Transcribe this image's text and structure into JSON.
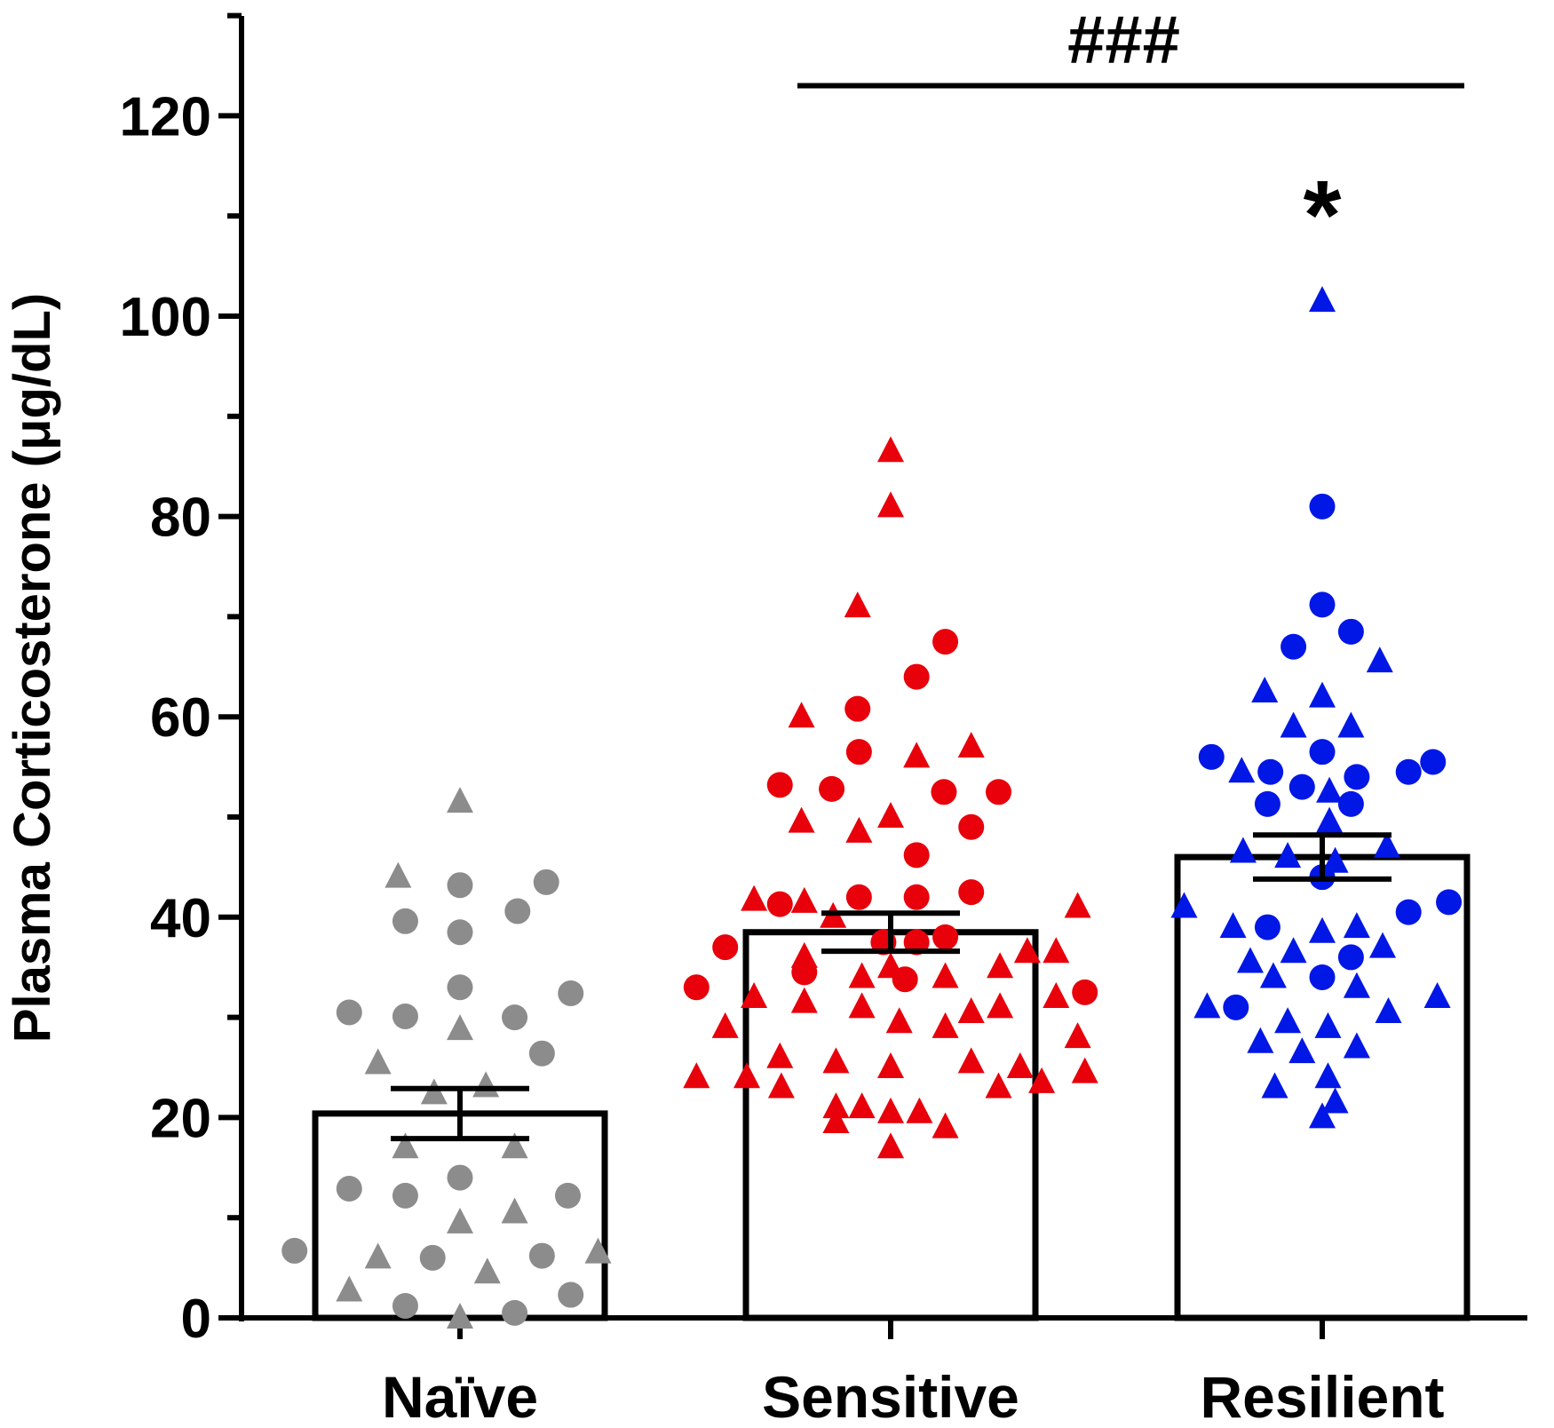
{
  "chart_data": {
    "type": "bar",
    "title": "",
    "xlabel": "",
    "ylabel": "Plasma Corticosterone (μg/dL)",
    "ylim": [
      0,
      130
    ],
    "ytick_step": 10,
    "ytick_labels": [
      "0",
      "20",
      "40",
      "60",
      "80",
      "100",
      "120"
    ],
    "categories": [
      "Naïve",
      "Sensitive",
      "Resilient"
    ],
    "means": [
      20.4,
      38.5,
      46.0
    ],
    "sem": [
      2.5,
      1.9,
      2.2
    ],
    "colors": [
      "#8c8c8c",
      "#e8000b",
      "#0017e6"
    ],
    "significance": {
      "bracket_label": "###",
      "bracket_from": "Sensitive",
      "bracket_to": "Resilient",
      "bracket_y": 123,
      "star_label": "*",
      "star_category": "Resilient",
      "star_y": 111
    },
    "points": [
      [
        {
          "v": 51.5,
          "s": "triangle",
          "o": 0.0
        },
        {
          "v": 44.0,
          "s": "triangle",
          "o": -0.43
        },
        {
          "v": 43.2,
          "s": "circle",
          "o": 0.0
        },
        {
          "v": 43.5,
          "s": "circle",
          "o": 0.6
        },
        {
          "v": 40.6,
          "s": "circle",
          "o": 0.4
        },
        {
          "v": 39.6,
          "s": "circle",
          "o": -0.38
        },
        {
          "v": 38.5,
          "s": "circle",
          "o": 0.0
        },
        {
          "v": 33.0,
          "s": "circle",
          "o": 0.0
        },
        {
          "v": 32.4,
          "s": "circle",
          "o": 0.77
        },
        {
          "v": 30.5,
          "s": "circle",
          "o": -0.77
        },
        {
          "v": 30.1,
          "s": "circle",
          "o": -0.38
        },
        {
          "v": 30.0,
          "s": "circle",
          "o": 0.38
        },
        {
          "v": 28.8,
          "s": "triangle",
          "o": 0.0
        },
        {
          "v": 26.4,
          "s": "circle",
          "o": 0.57
        },
        {
          "v": 25.4,
          "s": "triangle",
          "o": -0.57
        },
        {
          "v": 23.1,
          "s": "triangle",
          "o": 0.18
        },
        {
          "v": 22.4,
          "s": "triangle",
          "o": -0.18
        },
        {
          "v": 17.0,
          "s": "triangle",
          "o": -0.38
        },
        {
          "v": 17.0,
          "s": "triangle",
          "o": 0.38
        },
        {
          "v": 14.0,
          "s": "circle",
          "o": 0.0
        },
        {
          "v": 12.9,
          "s": "circle",
          "o": -0.77
        },
        {
          "v": 12.2,
          "s": "circle",
          "o": 0.75
        },
        {
          "v": 12.2,
          "s": "circle",
          "o": -0.38
        },
        {
          "v": 10.5,
          "s": "triangle",
          "o": 0.38
        },
        {
          "v": 9.5,
          "s": "triangle",
          "o": 0.0
        },
        {
          "v": 6.7,
          "s": "circle",
          "o": -1.15
        },
        {
          "v": 6.5,
          "s": "triangle",
          "o": 0.96
        },
        {
          "v": 6.2,
          "s": "circle",
          "o": 0.57
        },
        {
          "v": 6.0,
          "s": "circle",
          "o": -0.19
        },
        {
          "v": 6.0,
          "s": "triangle",
          "o": -0.57
        },
        {
          "v": 4.5,
          "s": "triangle",
          "o": 0.19
        },
        {
          "v": 2.7,
          "s": "triangle",
          "o": -0.77
        },
        {
          "v": 2.3,
          "s": "circle",
          "o": 0.77
        },
        {
          "v": 1.2,
          "s": "circle",
          "o": -0.38
        },
        {
          "v": 0.5,
          "s": "circle",
          "o": 0.38
        },
        {
          "v": 0.0,
          "s": "triangle",
          "o": 0.0
        }
      ],
      [
        {
          "v": 86.5,
          "s": "triangle",
          "o": 0.0
        },
        {
          "v": 81.0,
          "s": "triangle",
          "o": 0.0
        },
        {
          "v": 71.0,
          "s": "triangle",
          "o": -0.23
        },
        {
          "v": 67.5,
          "s": "circle",
          "o": 0.38
        },
        {
          "v": 64.0,
          "s": "circle",
          "o": 0.18
        },
        {
          "v": 60.8,
          "s": "circle",
          "o": -0.23
        },
        {
          "v": 60.0,
          "s": "triangle",
          "o": -0.62
        },
        {
          "v": 57.0,
          "s": "triangle",
          "o": 0.56
        },
        {
          "v": 56.5,
          "s": "circle",
          "o": -0.22
        },
        {
          "v": 56.0,
          "s": "triangle",
          "o": 0.18
        },
        {
          "v": 53.2,
          "s": "circle",
          "o": -0.77
        },
        {
          "v": 52.8,
          "s": "circle",
          "o": -0.41
        },
        {
          "v": 52.5,
          "s": "circle",
          "o": 0.75
        },
        {
          "v": 52.5,
          "s": "circle",
          "o": 0.37
        },
        {
          "v": 50.0,
          "s": "triangle",
          "o": 0.0
        },
        {
          "v": 49.5,
          "s": "triangle",
          "o": -0.62
        },
        {
          "v": 49.0,
          "s": "circle",
          "o": 0.56
        },
        {
          "v": 48.5,
          "s": "triangle",
          "o": -0.22
        },
        {
          "v": 46.2,
          "s": "circle",
          "o": 0.18
        },
        {
          "v": 42.5,
          "s": "circle",
          "o": 0.56
        },
        {
          "v": 42.0,
          "s": "circle",
          "o": -0.22
        },
        {
          "v": 42.0,
          "s": "circle",
          "o": 0.18
        },
        {
          "v": 41.7,
          "s": "triangle",
          "o": -0.95
        },
        {
          "v": 41.5,
          "s": "triangle",
          "o": -0.6
        },
        {
          "v": 41.3,
          "s": "circle",
          "o": -0.77
        },
        {
          "v": 41.0,
          "s": "triangle",
          "o": 1.3
        },
        {
          "v": 40.0,
          "s": "triangle",
          "o": -0.4
        },
        {
          "v": 38.0,
          "s": "circle",
          "o": 0.38
        },
        {
          "v": 37.5,
          "s": "circle",
          "o": 0.18
        },
        {
          "v": 37.5,
          "s": "circle",
          "o": -0.05
        },
        {
          "v": 37.0,
          "s": "circle",
          "o": -1.15
        },
        {
          "v": 36.5,
          "s": "triangle",
          "o": 0.95
        },
        {
          "v": 36.5,
          "s": "triangle",
          "o": 1.15
        },
        {
          "v": 36.0,
          "s": "triangle",
          "o": -0.6
        },
        {
          "v": 35.0,
          "s": "triangle",
          "o": 0.76
        },
        {
          "v": 35.0,
          "s": "triangle",
          "o": 0.0
        },
        {
          "v": 34.5,
          "s": "circle",
          "o": -0.6
        },
        {
          "v": 34.0,
          "s": "triangle",
          "o": 0.38
        },
        {
          "v": 34.0,
          "s": "triangle",
          "o": -0.2
        },
        {
          "v": 33.8,
          "s": "circle",
          "o": 0.1
        },
        {
          "v": 33.0,
          "s": "circle",
          "o": -1.35
        },
        {
          "v": 32.5,
          "s": "circle",
          "o": 1.35
        },
        {
          "v": 32.0,
          "s": "triangle",
          "o": -0.95
        },
        {
          "v": 32.0,
          "s": "triangle",
          "o": 1.15
        },
        {
          "v": 31.5,
          "s": "triangle",
          "o": -0.6
        },
        {
          "v": 31.0,
          "s": "triangle",
          "o": 0.76
        },
        {
          "v": 31.0,
          "s": "triangle",
          "o": -0.2
        },
        {
          "v": 30.5,
          "s": "triangle",
          "o": 0.56
        },
        {
          "v": 29.5,
          "s": "triangle",
          "o": 0.06
        },
        {
          "v": 29.0,
          "s": "triangle",
          "o": 0.38
        },
        {
          "v": 29.0,
          "s": "triangle",
          "o": -1.15
        },
        {
          "v": 28.0,
          "s": "triangle",
          "o": 1.3
        },
        {
          "v": 26.0,
          "s": "triangle",
          "o": -0.77
        },
        {
          "v": 25.5,
          "s": "triangle",
          "o": 0.56
        },
        {
          "v": 25.5,
          "s": "triangle",
          "o": -0.38
        },
        {
          "v": 25.0,
          "s": "triangle",
          "o": 0.0
        },
        {
          "v": 25.0,
          "s": "triangle",
          "o": 0.9
        },
        {
          "v": 24.5,
          "s": "triangle",
          "o": 1.35
        },
        {
          "v": 24.0,
          "s": "triangle",
          "o": -1.35
        },
        {
          "v": 24.0,
          "s": "triangle",
          "o": -1.0
        },
        {
          "v": 23.5,
          "s": "triangle",
          "o": 1.05
        },
        {
          "v": 23.0,
          "s": "triangle",
          "o": 0.75
        },
        {
          "v": 23.0,
          "s": "triangle",
          "o": -0.76
        },
        {
          "v": 21.0,
          "s": "triangle",
          "o": -0.38
        },
        {
          "v": 21.0,
          "s": "triangle",
          "o": -0.2
        },
        {
          "v": 20.5,
          "s": "triangle",
          "o": 0.2
        },
        {
          "v": 20.5,
          "s": "triangle",
          "o": 0.0
        },
        {
          "v": 19.5,
          "s": "triangle",
          "o": -0.38
        },
        {
          "v": 19.0,
          "s": "triangle",
          "o": 0.38
        },
        {
          "v": 17.0,
          "s": "triangle",
          "o": 0.0
        }
      ],
      [
        {
          "v": 101.5,
          "s": "triangle",
          "o": 0.0
        },
        {
          "v": 81.0,
          "s": "circle",
          "o": 0.0
        },
        {
          "v": 71.2,
          "s": "circle",
          "o": 0.0
        },
        {
          "v": 68.5,
          "s": "circle",
          "o": 0.2
        },
        {
          "v": 67.0,
          "s": "circle",
          "o": -0.2
        },
        {
          "v": 65.5,
          "s": "triangle",
          "o": 0.4
        },
        {
          "v": 62.5,
          "s": "triangle",
          "o": -0.4
        },
        {
          "v": 62.0,
          "s": "triangle",
          "o": 0.0
        },
        {
          "v": 59.0,
          "s": "triangle",
          "o": -0.2
        },
        {
          "v": 59.0,
          "s": "triangle",
          "o": 0.2
        },
        {
          "v": 56.5,
          "s": "circle",
          "o": 0.0
        },
        {
          "v": 56.0,
          "s": "circle",
          "o": -0.77
        },
        {
          "v": 55.5,
          "s": "circle",
          "o": 0.77
        },
        {
          "v": 54.5,
          "s": "triangle",
          "o": -0.56
        },
        {
          "v": 54.5,
          "s": "circle",
          "o": -0.36
        },
        {
          "v": 54.5,
          "s": "circle",
          "o": 0.6
        },
        {
          "v": 54.0,
          "s": "circle",
          "o": 0.24
        },
        {
          "v": 53.0,
          "s": "circle",
          "o": -0.14
        },
        {
          "v": 52.5,
          "s": "triangle",
          "o": 0.05
        },
        {
          "v": 51.3,
          "s": "circle",
          "o": -0.38
        },
        {
          "v": 51.3,
          "s": "circle",
          "o": 0.2
        },
        {
          "v": 49.5,
          "s": "triangle",
          "o": 0.05
        },
        {
          "v": 47.0,
          "s": "triangle",
          "o": 0.45
        },
        {
          "v": 46.5,
          "s": "triangle",
          "o": -0.55
        },
        {
          "v": 46.0,
          "s": "triangle",
          "o": -0.24
        },
        {
          "v": 45.5,
          "s": "triangle",
          "o": 0.09
        },
        {
          "v": 44.0,
          "s": "circle",
          "o": 0.0
        },
        {
          "v": 41.5,
          "s": "circle",
          "o": 0.88
        },
        {
          "v": 41.0,
          "s": "triangle",
          "o": -0.96
        },
        {
          "v": 40.5,
          "s": "circle",
          "o": 0.6
        },
        {
          "v": 39.0,
          "s": "triangle",
          "o": -0.62
        },
        {
          "v": 39.0,
          "s": "triangle",
          "o": 0.24
        },
        {
          "v": 39.0,
          "s": "circle",
          "o": -0.38
        },
        {
          "v": 38.5,
          "s": "triangle",
          "o": 0.0
        },
        {
          "v": 37.0,
          "s": "triangle",
          "o": 0.42
        },
        {
          "v": 36.5,
          "s": "triangle",
          "o": -0.2
        },
        {
          "v": 36.0,
          "s": "circle",
          "o": 0.2
        },
        {
          "v": 35.5,
          "s": "triangle",
          "o": -0.5
        },
        {
          "v": 34.0,
          "s": "triangle",
          "o": -0.34
        },
        {
          "v": 34.0,
          "s": "circle",
          "o": 0.0
        },
        {
          "v": 33.0,
          "s": "triangle",
          "o": 0.24
        },
        {
          "v": 32.0,
          "s": "triangle",
          "o": 0.8
        },
        {
          "v": 31.0,
          "s": "triangle",
          "o": -0.8
        },
        {
          "v": 31.0,
          "s": "circle",
          "o": -0.6
        },
        {
          "v": 30.5,
          "s": "triangle",
          "o": 0.46
        },
        {
          "v": 29.5,
          "s": "triangle",
          "o": -0.24
        },
        {
          "v": 29.0,
          "s": "triangle",
          "o": 0.04
        },
        {
          "v": 27.5,
          "s": "triangle",
          "o": -0.43
        },
        {
          "v": 27.0,
          "s": "triangle",
          "o": 0.24
        },
        {
          "v": 26.5,
          "s": "triangle",
          "o": -0.14
        },
        {
          "v": 24.0,
          "s": "triangle",
          "o": 0.04
        },
        {
          "v": 23.0,
          "s": "triangle",
          "o": -0.33
        },
        {
          "v": 21.5,
          "s": "triangle",
          "o": 0.09
        },
        {
          "v": 20.0,
          "s": "triangle",
          "o": 0.0
        }
      ]
    ]
  }
}
